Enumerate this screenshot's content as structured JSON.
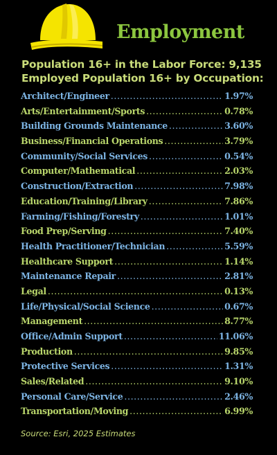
{
  "colors": {
    "background": "#000000",
    "title": "#8cc63f",
    "blue_row": "#7db4e3",
    "green_row": "#b9d66b",
    "helmet": "#f5e400"
  },
  "icon": "hard-hat-icon",
  "title": "Employment",
  "labor_force": "Population 16+ in the Labor Force: 9,135",
  "employed_heading": "Employed Population 16+ by Occupation:",
  "occupations": [
    {
      "label": "Architect/Engineer",
      "value": "1.97%",
      "color": "blue"
    },
    {
      "label": "Arts/Entertainment/Sports",
      "value": "0.78%",
      "color": "green"
    },
    {
      "label": "Building Grounds Maintenance",
      "value": "3.60%",
      "color": "blue"
    },
    {
      "label": "Business/Financial Operations",
      "value": "3.79%",
      "color": "green"
    },
    {
      "label": "Community/Social Services",
      "value": "0.54%",
      "color": "blue"
    },
    {
      "label": "Computer/Mathematical",
      "value": "2.03%",
      "color": "green"
    },
    {
      "label": "Construction/Extraction",
      "value": "7.98%",
      "color": "blue"
    },
    {
      "label": "Education/Training/Library",
      "value": "7.86%",
      "color": "green"
    },
    {
      "label": "Farming/Fishing/Forestry",
      "value": "1.01%",
      "color": "blue"
    },
    {
      "label": "Food Prep/Serving",
      "value": "7.40%",
      "color": "green"
    },
    {
      "label": "Health Practitioner/Technician",
      "value": "5.59%",
      "color": "blue"
    },
    {
      "label": "Healthcare Support",
      "value": "1.14%",
      "color": "green"
    },
    {
      "label": "Maintenance Repair",
      "value": "2.81%",
      "color": "blue"
    },
    {
      "label": "Legal",
      "value": "0.13%",
      "color": "green"
    },
    {
      "label": "Life/Physical/Social Science",
      "value": "0.67%",
      "color": "blue"
    },
    {
      "label": "Management",
      "value": "8.77%",
      "color": "green"
    },
    {
      "label": "Office/Admin Support",
      "value": "11.06%",
      "color": "blue"
    },
    {
      "label": "Production",
      "value": "9.85%",
      "color": "green"
    },
    {
      "label": "Protective Services",
      "value": "1.31%",
      "color": "blue"
    },
    {
      "label": "Sales/Related",
      "value": "9.10%",
      "color": "green"
    },
    {
      "label": "Personal Care/Service",
      "value": "2.46%",
      "color": "blue"
    },
    {
      "label": "Transportation/Moving",
      "value": "6.99%",
      "color": "green"
    }
  ],
  "source": "Source: Esri, 2025 Estimates"
}
